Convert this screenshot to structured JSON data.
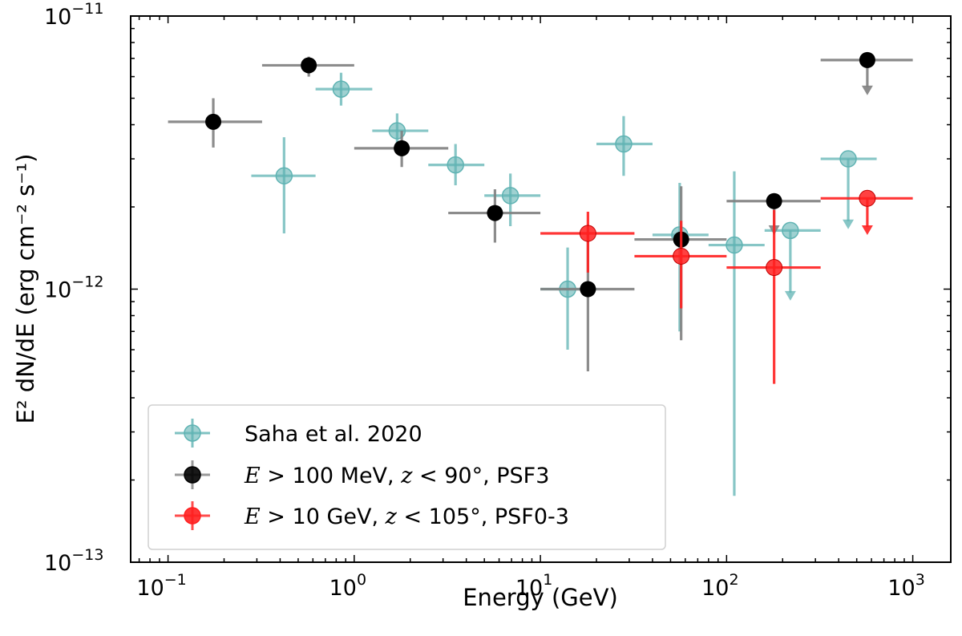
{
  "chart_data": {
    "type": "scatter",
    "xlabel": "Energy (GeV)",
    "ylabel": "E² dN/dE (erg cm⁻² s⁻¹)",
    "xscale": "log",
    "yscale": "log",
    "xlim": [
      0.063,
      1600
    ],
    "ylim": [
      1e-13,
      1e-11
    ],
    "x_ticks": [
      {
        "value": 0.1,
        "mantissa": "10",
        "exponent": "−1"
      },
      {
        "value": 1,
        "mantissa": "10",
        "exponent": "0"
      },
      {
        "value": 10,
        "mantissa": "10",
        "exponent": "1"
      },
      {
        "value": 100,
        "mantissa": "10",
        "exponent": "2"
      },
      {
        "value": 1000,
        "mantissa": "10",
        "exponent": "3"
      }
    ],
    "y_ticks": [
      {
        "value": 1e-13,
        "mantissa": "10",
        "exponent": "−13"
      },
      {
        "value": 1e-12,
        "mantissa": "10",
        "exponent": "−12"
      },
      {
        "value": 1e-11,
        "mantissa": "10",
        "exponent": "−11"
      }
    ],
    "legend_position": "lower-left",
    "series": [
      {
        "name": "Saha et al. 2020",
        "color": "#5fb3b3",
        "points": [
          {
            "x": 0.42,
            "xlo": 0.28,
            "xhi": 0.62,
            "y": 2.6e-12,
            "ylo": 1.6e-12,
            "yhi": 3.6e-12
          },
          {
            "x": 0.85,
            "xlo": 0.62,
            "xhi": 1.25,
            "y": 5.4e-12,
            "ylo": 4.7e-12,
            "yhi": 6.2e-12
          },
          {
            "x": 1.7,
            "xlo": 1.25,
            "xhi": 2.5,
            "y": 3.8e-12,
            "ylo": 3.3e-12,
            "yhi": 4.4e-12
          },
          {
            "x": 3.5,
            "xlo": 2.5,
            "xhi": 5.0,
            "y": 2.85e-12,
            "ylo": 2.4e-12,
            "yhi": 3.4e-12
          },
          {
            "x": 6.9,
            "xlo": 5.0,
            "xhi": 10.0,
            "y": 2.2e-12,
            "ylo": 1.7e-12,
            "yhi": 2.65e-12
          },
          {
            "x": 14,
            "xlo": 10,
            "xhi": 20,
            "y": 1e-12,
            "ylo": 6e-13,
            "yhi": 1.42e-12
          },
          {
            "x": 28,
            "xlo": 20,
            "xhi": 40,
            "y": 3.4e-12,
            "ylo": 2.6e-12,
            "yhi": 4.3e-12
          },
          {
            "x": 56,
            "xlo": 40,
            "xhi": 80,
            "y": 1.58e-12,
            "ylo": 7e-13,
            "yhi": 2.45e-12
          },
          {
            "x": 110,
            "xlo": 80,
            "xhi": 160,
            "y": 1.45e-12,
            "ylo": 1.75e-13,
            "yhi": 2.7e-12
          },
          {
            "x": 220,
            "xlo": 160,
            "xhi": 320,
            "y": 1.64e-12,
            "upper_limit": true,
            "arrow_to": 9.2e-13
          },
          {
            "x": 450,
            "xlo": 320,
            "xhi": 640,
            "y": 3e-12,
            "upper_limit": true,
            "arrow_to": 1.68e-12
          }
        ]
      },
      {
        "name": "E > 100 MeV, z < 90°, PSF3",
        "color": "#000000",
        "errcolor": "#808080",
        "points": [
          {
            "x": 0.175,
            "xlo": 0.1,
            "xhi": 0.32,
            "y": 4.1e-12,
            "ylo": 3.3e-12,
            "yhi": 5e-12
          },
          {
            "x": 0.57,
            "xlo": 0.32,
            "xhi": 1.0,
            "y": 6.6e-12,
            "ylo": 6e-12,
            "yhi": 7.1e-12
          },
          {
            "x": 1.8,
            "xlo": 1.0,
            "xhi": 3.2,
            "y": 3.28e-12,
            "ylo": 2.8e-12,
            "yhi": 3.8e-12
          },
          {
            "x": 5.7,
            "xlo": 3.2,
            "xhi": 10.0,
            "y": 1.9e-12,
            "ylo": 1.48e-12,
            "yhi": 2.32e-12
          },
          {
            "x": 18,
            "xlo": 10,
            "xhi": 32,
            "y": 1e-12,
            "ylo": 5e-13,
            "yhi": 1.62e-12
          },
          {
            "x": 57,
            "xlo": 32,
            "xhi": 100,
            "y": 1.52e-12,
            "ylo": 6.5e-13,
            "yhi": 2.38e-12
          },
          {
            "x": 180,
            "xlo": 100,
            "xhi": 320,
            "y": 2.1e-12,
            "upper_limit": true,
            "arrow_to": 1.6e-12
          },
          {
            "x": 570,
            "xlo": 320,
            "xhi": 1000,
            "y": 6.9e-12,
            "upper_limit": true,
            "arrow_to": 5.2e-12
          }
        ]
      },
      {
        "name": "E > 10 GeV, z < 105°, PSF0-3",
        "color": "#ff2020",
        "points": [
          {
            "x": 18,
            "xlo": 10,
            "xhi": 32,
            "y": 1.6e-12,
            "ylo": 1.15e-12,
            "yhi": 1.92e-12
          },
          {
            "x": 57,
            "xlo": 32,
            "xhi": 100,
            "y": 1.32e-12,
            "ylo": 8.5e-13,
            "yhi": 1.78e-12
          },
          {
            "x": 180,
            "xlo": 100,
            "xhi": 320,
            "y": 1.2e-12,
            "ylo": 4.5e-13,
            "yhi": 1.95e-12
          },
          {
            "x": 570,
            "xlo": 320,
            "xhi": 1000,
            "y": 2.15e-12,
            "upper_limit": true,
            "arrow_to": 1.6e-12
          }
        ]
      }
    ],
    "legend": [
      {
        "text": "Saha et al. 2020",
        "kind": "plain"
      },
      {
        "kind": "math",
        "m1": "E",
        "op1": " > ",
        "n1": "100",
        "unit": " MeV, ",
        "m2": "z",
        "op2": " < ",
        "n2": "90°",
        "tail": ", PSF3"
      },
      {
        "kind": "math",
        "m1": "E",
        "op1": " > ",
        "n1": "10",
        "unit": " GeV, ",
        "m2": "z",
        "op2": " < ",
        "n2": "105°",
        "tail": ", PSF0-3"
      }
    ]
  }
}
